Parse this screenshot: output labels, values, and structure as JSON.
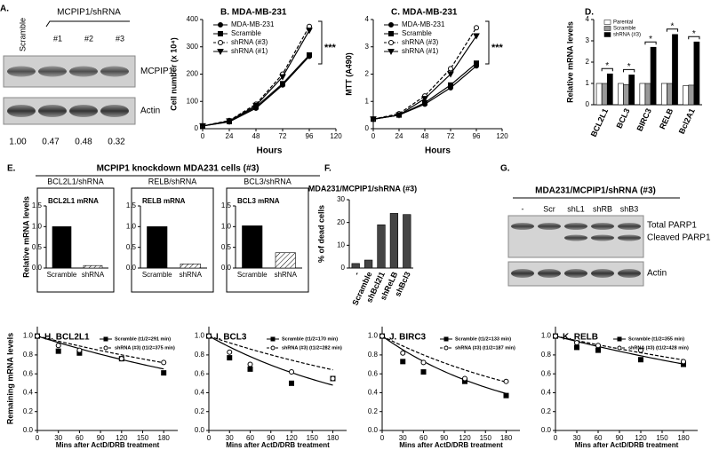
{
  "chart_data": [
    {
      "type": "line",
      "title": "B. MDA-MB-231",
      "x_label": "Hours",
      "y_label": "Cell number (x 10⁴)",
      "annotations": [
        "***"
      ],
      "x": [
        0,
        24,
        48,
        72,
        96
      ],
      "xlim": [
        0,
        120
      ],
      "xticks": [
        0,
        24,
        48,
        72,
        96,
        120
      ],
      "ylim": [
        0,
        400
      ],
      "yticks": [
        0,
        100,
        200,
        300,
        400
      ],
      "series": [
        {
          "name": "MDA-MB-231",
          "color": "#000000",
          "marker": "circle",
          "dashed": false,
          "values": [
            10,
            25,
            75,
            160,
            265
          ]
        },
        {
          "name": "Scramble",
          "color": "#000000",
          "marker": "square",
          "dashed": false,
          "values": [
            10,
            26,
            80,
            165,
            270
          ]
        },
        {
          "name": "shRNA (#3)",
          "color": "#000000",
          "marker": "circle-open",
          "dashed": true,
          "values": [
            10,
            30,
            90,
            200,
            375
          ]
        },
        {
          "name": "shRNA (#1)",
          "color": "#000000",
          "marker": "triangle",
          "dashed": false,
          "values": [
            10,
            28,
            85,
            190,
            360
          ]
        }
      ]
    },
    {
      "type": "line",
      "title": "C. MDA-MB-231",
      "x_label": "Hours",
      "y_label": "MTT (A490)",
      "annotations": [
        "***"
      ],
      "x": [
        0,
        24,
        48,
        72,
        96
      ],
      "xlim": [
        0,
        120
      ],
      "xticks": [
        0,
        24,
        48,
        72,
        96,
        120
      ],
      "ylim": [
        0,
        4
      ],
      "yticks": [
        0,
        1,
        2,
        3,
        4
      ],
      "series": [
        {
          "name": "MDA-MB-231",
          "color": "#000000",
          "marker": "circle",
          "dashed": false,
          "values": [
            0.35,
            0.5,
            0.9,
            1.5,
            2.3
          ]
        },
        {
          "name": "Scramble",
          "color": "#000000",
          "marker": "square",
          "dashed": false,
          "values": [
            0.35,
            0.5,
            0.95,
            1.6,
            2.4
          ]
        },
        {
          "name": "shRNA (#3)",
          "color": "#000000",
          "marker": "circle-open",
          "dashed": true,
          "values": [
            0.35,
            0.55,
            1.2,
            2.2,
            3.7
          ]
        },
        {
          "name": "shRNA (#1)",
          "color": "#000000",
          "marker": "triangle",
          "dashed": false,
          "values": [
            0.35,
            0.5,
            1.1,
            2.0,
            3.4
          ]
        }
      ]
    },
    {
      "type": "bar",
      "panel": "D.",
      "y_label": "Relative mRNA levels",
      "annotations": [
        "*",
        "*",
        "*",
        "*",
        "*"
      ],
      "categories": [
        "BCL2L1",
        "BCL3",
        "BIRC3",
        "RELB",
        "Bcl2A1"
      ],
      "ylim": [
        0,
        4
      ],
      "yticks": [
        0,
        1,
        2,
        3,
        4
      ],
      "series": [
        {
          "name": "Parental",
          "color": "#ffffff",
          "values": [
            1.0,
            1.0,
            1.0,
            1.0,
            0.9
          ]
        },
        {
          "name": "Scramble",
          "color": "#999999",
          "values": [
            1.0,
            0.95,
            1.0,
            1.0,
            0.92
          ]
        },
        {
          "name": "shRNA (#3)",
          "color": "#000000",
          "values": [
            1.45,
            1.4,
            2.7,
            3.3,
            2.95
          ]
        }
      ]
    },
    {
      "type": "bar",
      "title": "BCL2L1/shRNA",
      "subtitle": "BCL2L1 mRNA",
      "y_label": "Relative mRNA levels",
      "categories": [
        "Scramble",
        "shRNA"
      ],
      "values": [
        1.0,
        0.06
      ],
      "colors": [
        "#000000",
        "#ffffff"
      ],
      "hatched": [
        false,
        true
      ],
      "ylim": [
        0,
        1.5
      ],
      "yticks": [
        {
          "value": 0,
          "label": "0.0"
        },
        0.5,
        {
          "value": 1,
          "label": "1.0"
        },
        1.5
      ]
    },
    {
      "type": "bar",
      "title": "RELB/shRNA",
      "subtitle": "RELB mRNA",
      "categories": [
        "Scramble",
        "shRNA"
      ],
      "values": [
        1.0,
        0.1
      ],
      "colors": [
        "#000000",
        "#ffffff"
      ],
      "hatched": [
        false,
        true
      ],
      "ylim": [
        0,
        1.5
      ],
      "yticks": [
        {
          "value": 0,
          "label": "0.0"
        },
        0.5,
        {
          "value": 1,
          "label": "1.0"
        },
        1.5
      ]
    },
    {
      "type": "bar",
      "title": "BCL3/shRNA",
      "subtitle": "BCL3 mRNA",
      "categories": [
        "Scramble",
        "shRNA"
      ],
      "values": [
        1.02,
        0.37
      ],
      "colors": [
        "#000000",
        "#ffffff"
      ],
      "hatched": [
        false,
        true
      ],
      "ylim": [
        0,
        1.5
      ],
      "yticks": [
        {
          "value": 0,
          "label": "0.0"
        },
        0.5,
        {
          "value": 1,
          "label": "1.0"
        },
        1.5
      ]
    },
    {
      "type": "bar",
      "panel": "F.",
      "title": "MDA231/MCPIP1/shRNA (#3)",
      "y_label": "% of dead cells",
      "categories": [
        "-",
        "Scramble",
        "shBcl2l1",
        "shReLB",
        "shBcl3"
      ],
      "values": [
        2,
        3.5,
        19,
        24,
        23.5
      ],
      "color": "#444444",
      "ylim": [
        0,
        30
      ],
      "yticks": [
        0,
        10,
        20,
        30
      ]
    },
    {
      "type": "scatter",
      "title": "H. BCL2L1",
      "y_label": "Remaining mRNA levels",
      "x_label": "Mins after ActD/DRB treatment",
      "x": [
        0,
        30,
        60,
        120,
        180
      ],
      "xlim": [
        0,
        200
      ],
      "xticks": [
        0,
        30,
        60,
        90,
        120,
        150,
        180
      ],
      "ylim": [
        0,
        1.1
      ],
      "yticks": [
        {
          "value": 0,
          "label": "0.0"
        },
        0.2,
        0.4,
        0.6,
        0.8,
        {
          "value": 1,
          "label": "1.0"
        }
      ],
      "series": [
        {
          "name": "Scramble (t1/2=291 min)",
          "color": "#000000",
          "marker": "square",
          "dashed": false,
          "half_life": 291,
          "values": [
            1.0,
            0.84,
            0.82,
            0.76,
            0.61
          ]
        },
        {
          "name": "shRNA (#3) (t1/2=375 min)",
          "color": "#000000",
          "marker": "circle-open",
          "dashed": true,
          "half_life": 375,
          "values": [
            1.0,
            0.9,
            0.85,
            0.76,
            0.72
          ]
        }
      ]
    },
    {
      "type": "scatter",
      "title": "I. BCL3",
      "x_label": "Mins after ActD/DRB treatment",
      "x": [
        0,
        30,
        60,
        120,
        180
      ],
      "xlim": [
        0,
        200
      ],
      "xticks": [
        0,
        30,
        60,
        90,
        120,
        150,
        180
      ],
      "ylim": [
        0,
        1.1
      ],
      "yticks": [
        {
          "value": 0,
          "label": "0.0"
        },
        0.2,
        0.4,
        0.6,
        0.8,
        {
          "value": 1,
          "label": "1.0"
        }
      ],
      "series": [
        {
          "name": "Scramble (t1/2=170 min)",
          "color": "#000000",
          "marker": "square",
          "dashed": false,
          "half_life": 170,
          "values": [
            1.0,
            0.77,
            0.65,
            0.5,
            0.55
          ]
        },
        {
          "name": "shRNA (#3) (t1/2=282 min)",
          "color": "#000000",
          "marker": "circle-open",
          "dashed": true,
          "half_life": 282,
          "values": [
            1.0,
            0.83,
            0.7,
            0.62,
            0.55
          ]
        }
      ]
    },
    {
      "type": "scatter",
      "title": "J. BIRC3",
      "x_label": "Mins after ActD/DRB treatment",
      "x": [
        0,
        30,
        60,
        120,
        180
      ],
      "xlim": [
        0,
        200
      ],
      "xticks": [
        0,
        30,
        60,
        90,
        120,
        150,
        180
      ],
      "ylim": [
        0,
        1.1
      ],
      "yticks": [
        {
          "value": 0,
          "label": "0.0"
        },
        0.2,
        0.4,
        0.6,
        0.8,
        {
          "value": 1,
          "label": "1.0"
        }
      ],
      "series": [
        {
          "name": "Scramble (t1/2=133 min)",
          "color": "#000000",
          "marker": "square",
          "dashed": false,
          "half_life": 133,
          "values": [
            1.0,
            0.73,
            0.62,
            0.52,
            0.37
          ]
        },
        {
          "name": "shRNA (#3) (t1/2=187 min)",
          "color": "#000000",
          "marker": "circle-open",
          "dashed": true,
          "half_life": 187,
          "values": [
            1.0,
            0.82,
            0.72,
            0.55,
            0.52
          ]
        }
      ]
    },
    {
      "type": "scatter",
      "title": "K. RELB",
      "x_label": "Mins after ActD/DRB treatment",
      "x": [
        0,
        30,
        60,
        120,
        180
      ],
      "xlim": [
        0,
        200
      ],
      "xticks": [
        0,
        30,
        60,
        90,
        120,
        150,
        180
      ],
      "ylim": [
        0,
        1.1
      ],
      "yticks": [
        {
          "value": 0,
          "label": "0.0"
        },
        0.2,
        0.4,
        0.6,
        0.8,
        {
          "value": 1,
          "label": "1.0"
        }
      ],
      "series": [
        {
          "name": "Scramble (t1/2=355 min)",
          "color": "#000000",
          "marker": "square",
          "dashed": false,
          "half_life": 355,
          "values": [
            1.0,
            0.88,
            0.85,
            0.75,
            0.7
          ]
        },
        {
          "name": "shRNA (#3) (t1/2=428 min)",
          "color": "#000000",
          "marker": "circle-open",
          "dashed": true,
          "half_life": 428,
          "values": [
            1.0,
            0.93,
            0.9,
            0.85,
            0.73
          ]
        }
      ]
    }
  ],
  "panel_e": {
    "panel": "E.",
    "title": "MCPIP1 knockdown MDA231 cells (#3)"
  },
  "blot_a": {
    "panel": "A.",
    "group": "MCPIP1/shRNA",
    "lanes": [
      "Scramble",
      "#1",
      "#2",
      "#3"
    ],
    "bands": [
      "MCPIP1",
      "Actin"
    ],
    "quant": [
      "1.00",
      "0.47",
      "0.48",
      "0.32"
    ]
  },
  "blot_g": {
    "panel": "G.",
    "title": "MDA231/MCPIP1/shRNA (#3)",
    "lanes": [
      "-",
      "Scr",
      "shL1",
      "shRB",
      "shB3"
    ],
    "bands": [
      "Total PARP1",
      "Cleaved PARP1",
      "Actin"
    ]
  }
}
